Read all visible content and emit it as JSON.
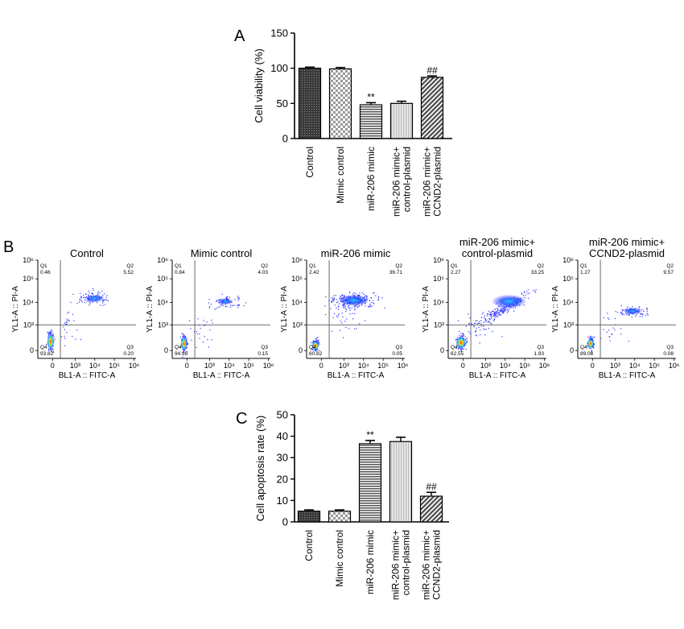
{
  "panel_labels": {
    "a": "A",
    "b": "B",
    "c": "C"
  },
  "colors": {
    "axis": "#000000",
    "dots": "#2f33ff",
    "dense_core": "#ff3300",
    "mid_core": "#22c8ff",
    "warm": "#ffd800"
  },
  "chart_data": [
    {
      "type": "bar",
      "panel": "A",
      "ylabel": "Cell viability (%)",
      "ylim": [
        0,
        150
      ],
      "yticks": [
        "0",
        "50",
        "100",
        "150"
      ],
      "categories": [
        "Control",
        "Mimic control",
        "miR-206 mimic",
        "miR-206 mimic+\ncontrol-plasmid",
        "miR-206 mimic+\nCCND2-plasmid"
      ],
      "values": [
        100,
        99,
        48,
        50,
        87
      ],
      "errors": [
        1.5,
        2,
        3,
        3,
        2
      ],
      "annotations": [
        "",
        "",
        "**",
        "",
        "##"
      ],
      "patterns": [
        "dense-dark",
        "checker",
        "h-lines",
        "v-lines-light",
        "diag"
      ]
    },
    {
      "type": "scatter",
      "panel": "B",
      "xlabel": "BL1-A :: FITC-A",
      "ylabel": "YL1-A :: PI-A",
      "xticks": [
        "0",
        "10³",
        "10⁴",
        "10⁵",
        "10⁶"
      ],
      "yticks": [
        "0",
        "10³",
        "10⁴",
        "10⁵",
        "10⁶"
      ],
      "plots": [
        {
          "title": "Control",
          "q1": {
            "label": "Q1",
            "value": "0.46"
          },
          "q2": {
            "label": "Q2",
            "value": "5.52"
          },
          "q3": {
            "label": "Q3",
            "value": "0.20"
          },
          "q4": {
            "label": "Q4",
            "value": "93.82"
          }
        },
        {
          "title": "Mimic control",
          "q1": {
            "label": "Q1",
            "value": "0.84"
          },
          "q2": {
            "label": "Q2",
            "value": "4.03"
          },
          "q3": {
            "label": "Q3",
            "value": "0.15"
          },
          "q4": {
            "label": "Q4",
            "value": "94.98"
          }
        },
        {
          "title": "miR-206 mimic",
          "q1": {
            "label": "Q1",
            "value": "2.42"
          },
          "q2": {
            "label": "Q2",
            "value": "36.71"
          },
          "q3": {
            "label": "Q3",
            "value": "0.05"
          },
          "q4": {
            "label": "Q4",
            "value": "60.82"
          }
        },
        {
          "title": "miR-206 mimic+\ncontrol-plasmid",
          "q1": {
            "label": "Q1",
            "value": "2.27"
          },
          "q2": {
            "label": "Q2",
            "value": "33.25"
          },
          "q3": {
            "label": "Q3",
            "value": "1.93"
          },
          "q4": {
            "label": "Q4",
            "value": "62.55"
          }
        },
        {
          "title": "miR-206 mimic+\nCCND2-plasmid",
          "q1": {
            "label": "Q1",
            "value": "1.27"
          },
          "q2": {
            "label": "Q2",
            "value": "9.57"
          },
          "q3": {
            "label": "Q3",
            "value": "0.08"
          },
          "q4": {
            "label": "Q4",
            "value": "89.08"
          }
        }
      ]
    },
    {
      "type": "bar",
      "panel": "C",
      "ylabel": "Cell apoptosis rate (%)",
      "ylim": [
        0,
        50
      ],
      "yticks": [
        "0",
        "10",
        "20",
        "30",
        "40",
        "50"
      ],
      "categories": [
        "Control",
        "Mimic control",
        "miR-206 mimic",
        "miR-206 mimic+\ncontrol-plasmid",
        "miR-206 mimic+\nCCND2-plasmid"
      ],
      "values": [
        5,
        5,
        36.5,
        37.5,
        12
      ],
      "errors": [
        0.6,
        0.6,
        1.5,
        2,
        1.8
      ],
      "annotations": [
        "",
        "",
        "**",
        "",
        "##"
      ],
      "patterns": [
        "dense-dark",
        "checker",
        "h-lines",
        "v-lines-light",
        "diag"
      ]
    }
  ]
}
